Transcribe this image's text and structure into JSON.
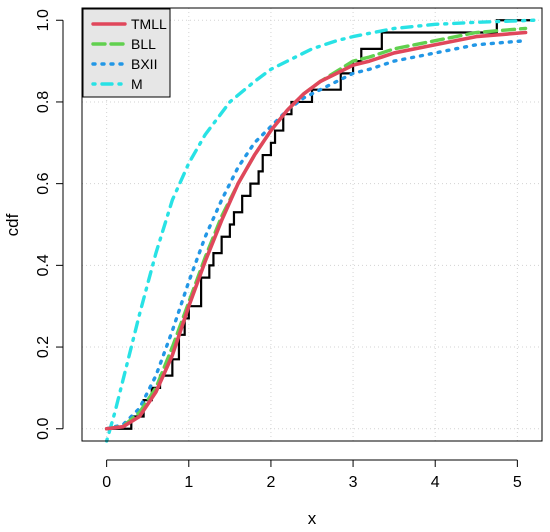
{
  "chart_data": {
    "type": "line",
    "xlabel": "x",
    "ylabel": "cdf",
    "xlim": [
      -0.3,
      5.3
    ],
    "ylim": [
      -0.03,
      1.03
    ],
    "x_ticks": [
      0,
      1,
      2,
      3,
      4,
      5
    ],
    "y_ticks": [
      0.0,
      0.2,
      0.4,
      0.6,
      0.8,
      1.0
    ],
    "x_tick_labels": [
      "0",
      "1",
      "2",
      "3",
      "4",
      "5"
    ],
    "y_tick_labels": [
      "0.0",
      "0.2",
      "0.4",
      "0.6",
      "0.8",
      "1.0"
    ],
    "grid": true,
    "legend_position": "top-left",
    "series": [
      {
        "name": "TMLL",
        "style": "solid",
        "color": "#E0475B",
        "x": [
          0,
          0.2,
          0.4,
          0.6,
          0.8,
          1.0,
          1.2,
          1.4,
          1.6,
          1.8,
          2.0,
          2.2,
          2.4,
          2.6,
          2.8,
          3.0,
          3.2,
          3.5,
          4.0,
          4.5,
          5.1
        ],
        "y": [
          0,
          0.005,
          0.03,
          0.09,
          0.18,
          0.3,
          0.41,
          0.51,
          0.6,
          0.67,
          0.73,
          0.78,
          0.82,
          0.85,
          0.87,
          0.89,
          0.9,
          0.92,
          0.94,
          0.96,
          0.97
        ]
      },
      {
        "name": "BLL",
        "style": "dashed",
        "color": "#61D04F",
        "x": [
          0,
          0.2,
          0.4,
          0.6,
          0.8,
          1.0,
          1.2,
          1.4,
          1.6,
          1.8,
          2.0,
          2.2,
          2.4,
          2.6,
          2.8,
          3.0,
          3.2,
          3.5,
          4.0,
          4.5,
          5.1
        ],
        "y": [
          0,
          0.006,
          0.04,
          0.1,
          0.2,
          0.31,
          0.42,
          0.52,
          0.6,
          0.67,
          0.73,
          0.78,
          0.82,
          0.85,
          0.875,
          0.9,
          0.91,
          0.93,
          0.95,
          0.97,
          0.98
        ]
      },
      {
        "name": "BXII",
        "style": "dotted",
        "color": "#2297E6",
        "x": [
          0,
          0.2,
          0.4,
          0.6,
          0.8,
          1.0,
          1.2,
          1.4,
          1.6,
          1.8,
          2.0,
          2.2,
          2.4,
          2.6,
          2.8,
          3.0,
          3.2,
          3.5,
          4.0,
          4.5,
          5.1
        ],
        "y": [
          0,
          0.01,
          0.05,
          0.13,
          0.24,
          0.36,
          0.47,
          0.56,
          0.64,
          0.7,
          0.74,
          0.78,
          0.81,
          0.83,
          0.85,
          0.87,
          0.88,
          0.9,
          0.92,
          0.94,
          0.95
        ]
      },
      {
        "name": "M",
        "style": "dashdot",
        "color": "#28E2E5",
        "x": [
          0,
          0.1,
          0.2,
          0.3,
          0.4,
          0.6,
          0.8,
          1.0,
          1.2,
          1.5,
          1.8,
          2.0,
          2.2,
          2.5,
          2.8,
          3.0,
          3.5,
          4.0,
          4.5,
          5.2
        ],
        "y": [
          -0.03,
          0.04,
          0.12,
          0.2,
          0.28,
          0.43,
          0.56,
          0.65,
          0.72,
          0.8,
          0.85,
          0.88,
          0.9,
          0.93,
          0.95,
          0.96,
          0.98,
          0.99,
          0.995,
          1.0
        ]
      }
    ],
    "empirical_cdf": {
      "style": "step",
      "color": "#000000",
      "x": [
        0,
        0.3,
        0.35,
        0.45,
        0.55,
        0.65,
        0.8,
        0.88,
        0.95,
        1.0,
        1.15,
        1.25,
        1.3,
        1.4,
        1.5,
        1.55,
        1.65,
        1.75,
        1.85,
        1.9,
        2.0,
        2.05,
        2.15,
        2.25,
        2.4,
        2.5,
        2.7,
        2.85,
        3.0,
        3.1,
        3.35,
        4.75,
        5.2
      ],
      "y": [
        0,
        0.03,
        0.03,
        0.07,
        0.1,
        0.13,
        0.17,
        0.23,
        0.27,
        0.3,
        0.37,
        0.4,
        0.43,
        0.47,
        0.5,
        0.53,
        0.57,
        0.6,
        0.63,
        0.67,
        0.7,
        0.73,
        0.77,
        0.8,
        0.8,
        0.83,
        0.83,
        0.87,
        0.9,
        0.93,
        0.97,
        1.0,
        1.0
      ]
    }
  }
}
